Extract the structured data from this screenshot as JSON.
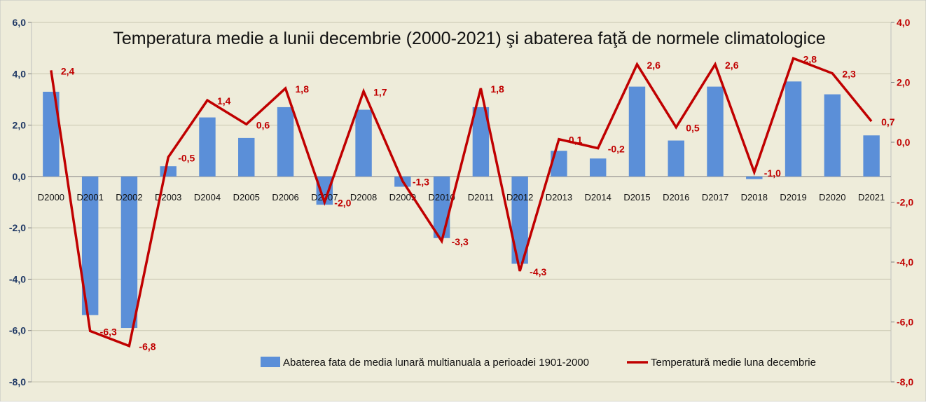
{
  "chart_data": {
    "type": "bar",
    "title": "Temperatura medie a lunii decembrie (2000-2021) şi abaterea faţă de normele climatologice",
    "categories": [
      "D2000",
      "D2001",
      "D2002",
      "D2003",
      "D2004",
      "D2005",
      "D2006",
      "D2007",
      "D2008",
      "D2009",
      "D2010",
      "D2011",
      "D2012",
      "D2013",
      "D2014",
      "D2015",
      "D2016",
      "D2017",
      "D2018",
      "D2019",
      "D2020",
      "D2021"
    ],
    "series": [
      {
        "name": "Abaterea  fata de media lunară multianuala a perioadei 1901-2000",
        "type": "bar",
        "axis": "left",
        "color": "#5b8fd8",
        "values": [
          3.3,
          -5.4,
          -5.9,
          0.4,
          2.3,
          1.5,
          2.7,
          -1.1,
          2.6,
          -0.4,
          -2.4,
          2.7,
          -3.4,
          1.0,
          0.7,
          3.5,
          1.4,
          3.5,
          -0.1,
          3.7,
          3.2,
          1.6
        ]
      },
      {
        "name": "Temperatură medie luna decembrie",
        "type": "line",
        "axis": "right",
        "color": "#c00000",
        "values": [
          2.4,
          -6.3,
          -6.8,
          -0.5,
          1.4,
          0.6,
          1.8,
          -2.0,
          1.7,
          -1.3,
          -3.3,
          1.8,
          -4.3,
          0.1,
          -0.2,
          2.6,
          0.5,
          2.6,
          -1.0,
          2.8,
          2.3,
          0.7
        ],
        "labels": [
          "2,4",
          "-6,3",
          "-6,8",
          "-0,5",
          "1,4",
          "0,6",
          "1,8",
          "-2,0",
          "1,7",
          "-1,3",
          "-3,3",
          "1,8",
          "-4,3",
          "0,1",
          "-0,2",
          "2,6",
          "0,5",
          "2,6",
          "-1,0",
          "2,8",
          "2,3",
          "0,7"
        ]
      }
    ],
    "y_left": {
      "ylim": [
        -8,
        6
      ],
      "ticks": [
        6,
        4,
        2,
        0,
        -2,
        -4,
        -6,
        -8
      ],
      "tick_labels": [
        "6,0",
        "4,0",
        "2,0",
        "0,0",
        "-2,0",
        "-4,0",
        "-6,0",
        "-8,0"
      ],
      "color": "#1f3864"
    },
    "y_right": {
      "ylim": [
        -8,
        4
      ],
      "ticks": [
        4,
        2,
        0,
        -2,
        -4,
        -6,
        -8
      ],
      "tick_labels": [
        "4,0",
        "2,0",
        "0,0",
        "-2,0",
        "-4,0",
        "-6,0",
        "-8,0"
      ],
      "color": "#c00000"
    },
    "grid": true,
    "legend_position": "bottom-right",
    "background": "#eeecda"
  }
}
